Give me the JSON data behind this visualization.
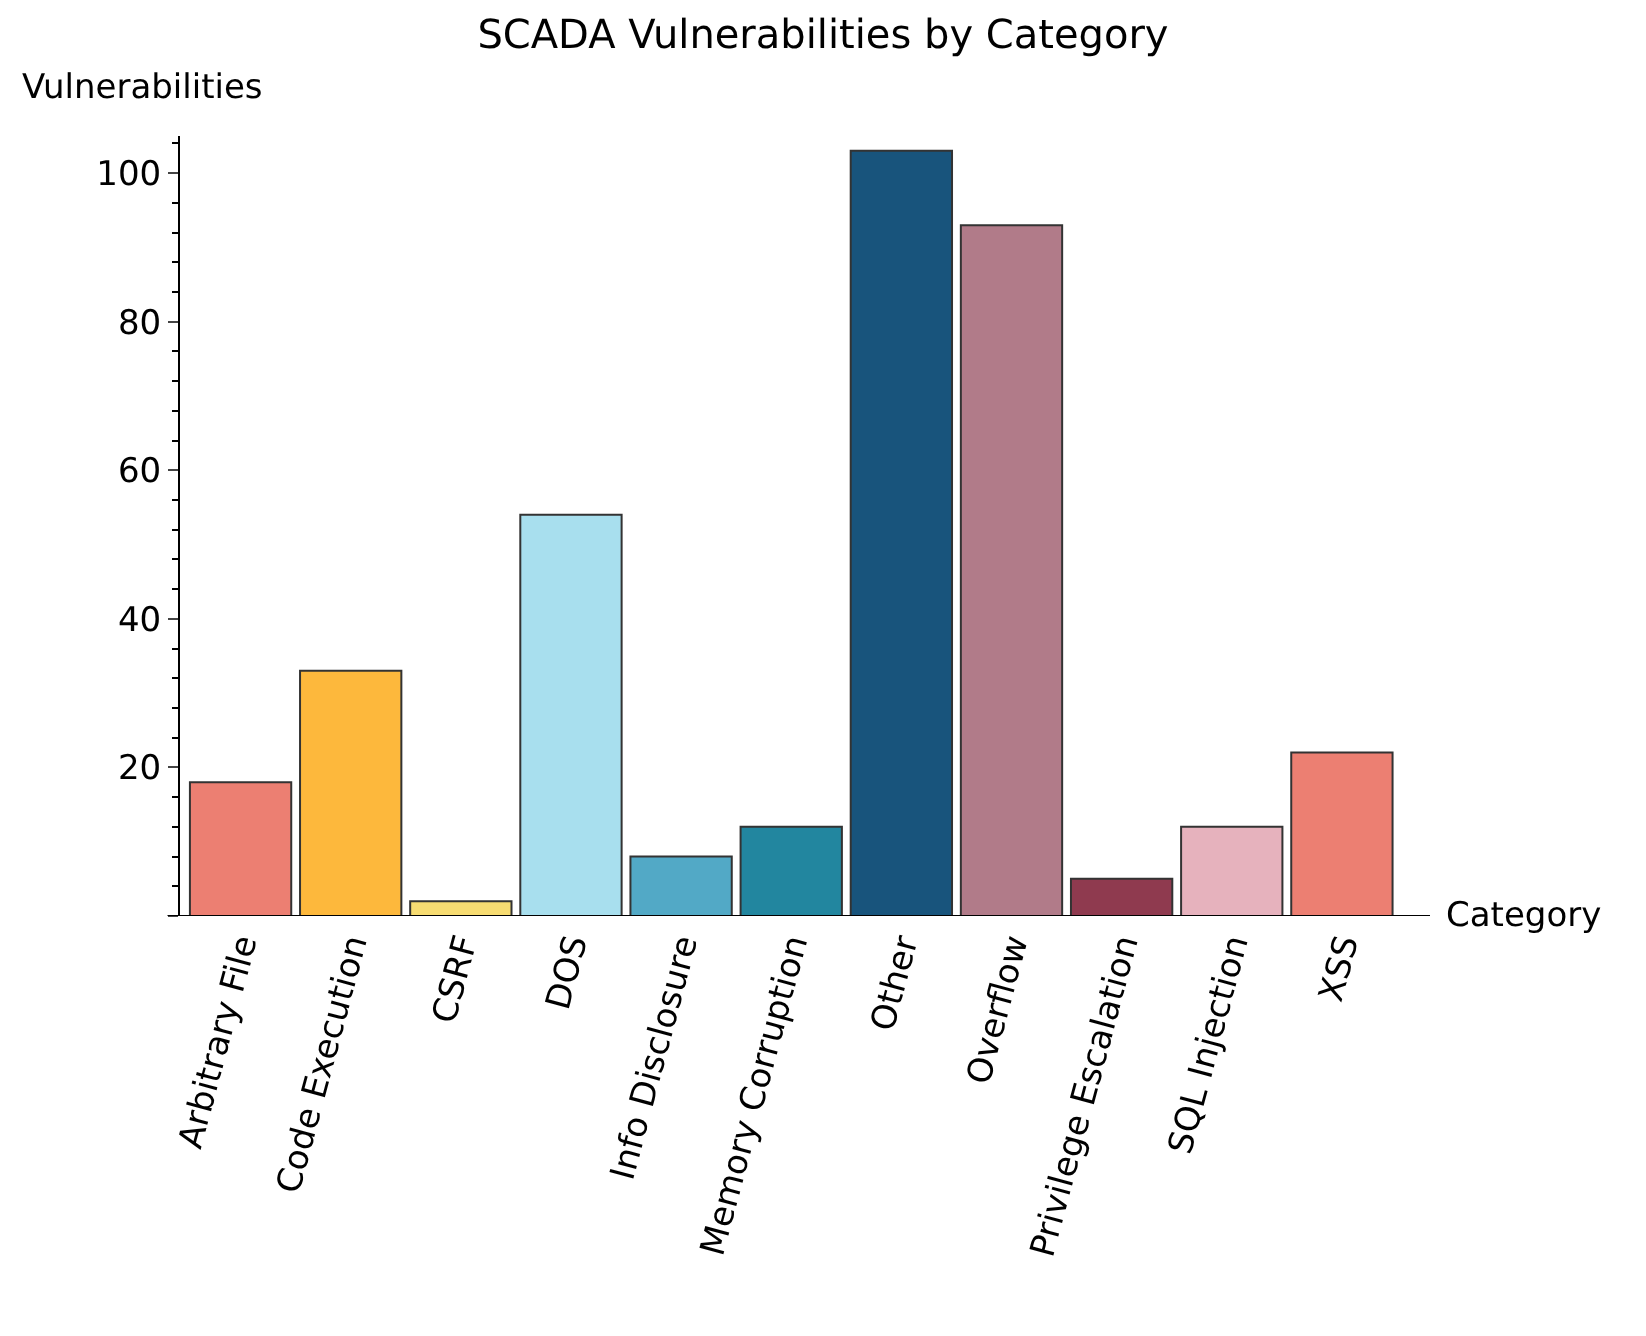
{
  "chart_data": {
    "type": "bar",
    "title": "SCADA Vulnerabilities by Category",
    "xlabel": "Category",
    "ylabel": "Vulnerabilities",
    "categories": [
      "Arbitrary File",
      "Code Execution",
      "CSRF",
      "DOS",
      "Info Disclosure",
      "Memory Corruption",
      "Other",
      "Overflow",
      "Privilege Escalation",
      "SQL Injection",
      "XSS"
    ],
    "values": [
      18,
      33,
      2,
      54,
      8,
      12,
      103,
      93,
      5,
      12,
      22
    ],
    "colors": [
      "#ec7f72",
      "#fdb83c",
      "#f7dc72",
      "#a8dfee",
      "#52a9c6",
      "#22869f",
      "#18547c",
      "#b17b89",
      "#8f3a4f",
      "#e6b2bd",
      "#ec7f72"
    ],
    "ylim": [
      0,
      105
    ],
    "yticks": [
      {
        "value": 0,
        "label": null
      },
      20,
      40,
      60,
      80,
      100
    ]
  }
}
